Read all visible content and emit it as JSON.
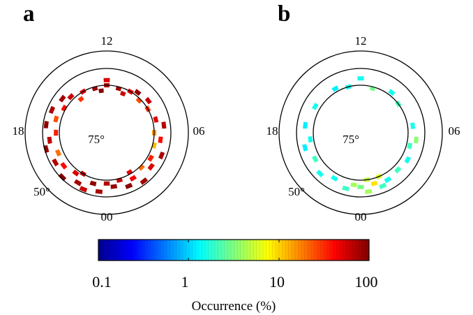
{
  "chart_data": [
    {
      "type": "polar_dial",
      "panel_label": "a",
      "mlt_labels": {
        "top": "12",
        "right": "06",
        "bottom": "00",
        "left": "18"
      },
      "lat_labels": {
        "inner": "75°",
        "outer": "50°"
      },
      "circle_latitudes": [
        50,
        60,
        70
      ],
      "cells": [
        {
          "mlt": 0.0,
          "lat": 68,
          "occ": 70
        },
        {
          "mlt": 0.5,
          "lat": 66,
          "occ": 85
        },
        {
          "mlt": 1.0,
          "lat": 69,
          "occ": 60
        },
        {
          "mlt": 1.5,
          "lat": 64,
          "occ": 90
        },
        {
          "mlt": 2.0,
          "lat": 67,
          "occ": 45
        },
        {
          "mlt": 2.5,
          "lat": 62,
          "occ": 80
        },
        {
          "mlt": 3.0,
          "lat": 69,
          "occ": 20
        },
        {
          "mlt": 3.5,
          "lat": 65,
          "occ": 55
        },
        {
          "mlt": 4.0,
          "lat": 68,
          "occ": 35
        },
        {
          "mlt": 4.5,
          "lat": 63,
          "occ": 75
        },
        {
          "mlt": 5.0,
          "lat": 69,
          "occ": 12
        },
        {
          "mlt": 5.5,
          "lat": 66,
          "occ": 40
        },
        {
          "mlt": 6.0,
          "lat": 70,
          "occ": 15
        },
        {
          "mlt": 6.5,
          "lat": 64,
          "occ": 70
        },
        {
          "mlt": 7.0,
          "lat": 68,
          "occ": 50
        },
        {
          "mlt": 8.0,
          "lat": 70,
          "occ": 30
        },
        {
          "mlt": 8.5,
          "lat": 67,
          "occ": 65
        },
        {
          "mlt": 9.0,
          "lat": 71,
          "occ": 25
        },
        {
          "mlt": 10.0,
          "lat": 70,
          "occ": 45
        },
        {
          "mlt": 10.5,
          "lat": 73,
          "occ": 60
        },
        {
          "mlt": 11.0,
          "lat": 71,
          "occ": 80
        },
        {
          "mlt": 12.0,
          "lat": 70,
          "occ": 70
        },
        {
          "mlt": 12.5,
          "lat": 73,
          "occ": 95
        },
        {
          "mlt": 13.0,
          "lat": 71,
          "occ": 85
        },
        {
          "mlt": 14.0,
          "lat": 70,
          "occ": 50
        },
        {
          "mlt": 14.5,
          "lat": 73,
          "occ": 30
        },
        {
          "mlt": 15.0,
          "lat": 68,
          "occ": 60
        },
        {
          "mlt": 15.5,
          "lat": 65,
          "occ": 80
        },
        {
          "mlt": 16.0,
          "lat": 69,
          "occ": 40
        },
        {
          "mlt": 16.5,
          "lat": 63,
          "occ": 75
        },
        {
          "mlt": 17.0,
          "lat": 67,
          "occ": 25
        },
        {
          "mlt": 17.5,
          "lat": 62,
          "occ": 90
        },
        {
          "mlt": 18.0,
          "lat": 68,
          "occ": 35
        },
        {
          "mlt": 18.5,
          "lat": 64,
          "occ": 65
        },
        {
          "mlt": 19.0,
          "lat": 61,
          "occ": 85
        },
        {
          "mlt": 19.5,
          "lat": 67,
          "occ": 20
        },
        {
          "mlt": 20.0,
          "lat": 63,
          "occ": 70
        },
        {
          "mlt": 20.5,
          "lat": 66,
          "occ": 40
        },
        {
          "mlt": 21.0,
          "lat": 61,
          "occ": 95
        },
        {
          "mlt": 21.5,
          "lat": 68,
          "occ": 55
        },
        {
          "mlt": 22.0,
          "lat": 64,
          "occ": 80
        },
        {
          "mlt": 22.5,
          "lat": 62,
          "occ": 60
        },
        {
          "mlt": 23.0,
          "lat": 67,
          "occ": 90
        },
        {
          "mlt": 23.5,
          "lat": 63,
          "occ": 75
        },
        {
          "mlt": 2.0,
          "lat": 71,
          "occ": 50
        },
        {
          "mlt": 22.0,
          "lat": 70,
          "occ": 70
        },
        {
          "mlt": 12.0,
          "lat": 67,
          "occ": 55
        },
        {
          "mlt": 9.5,
          "lat": 68,
          "occ": 90
        }
      ]
    },
    {
      "type": "polar_dial",
      "panel_label": "b",
      "mlt_labels": {
        "top": "12",
        "right": "06",
        "bottom": "00",
        "left": "18"
      },
      "lat_labels": {
        "inner": "75°",
        "outer": "50°"
      },
      "circle_latitudes": [
        50,
        60,
        70
      ],
      "cells": [
        {
          "mlt": 0.0,
          "lat": 66,
          "occ": 3
        },
        {
          "mlt": 0.5,
          "lat": 63,
          "occ": 4
        },
        {
          "mlt": 1.0,
          "lat": 67,
          "occ": 9
        },
        {
          "mlt": 1.5,
          "lat": 64,
          "occ": 2
        },
        {
          "mlt": 2.0,
          "lat": 66,
          "occ": 1.5
        },
        {
          "mlt": 3.0,
          "lat": 67,
          "occ": 2
        },
        {
          "mlt": 4.0,
          "lat": 66,
          "occ": 1.5
        },
        {
          "mlt": 5.0,
          "lat": 68,
          "occ": 2
        },
        {
          "mlt": 5.5,
          "lat": 65,
          "occ": 3.5
        },
        {
          "mlt": 6.5,
          "lat": 67,
          "occ": 1.5
        },
        {
          "mlt": 8.5,
          "lat": 70,
          "occ": 2
        },
        {
          "mlt": 9.5,
          "lat": 68,
          "occ": 1.5
        },
        {
          "mlt": 11.0,
          "lat": 71,
          "occ": 3
        },
        {
          "mlt": 12.0,
          "lat": 66,
          "occ": 1.5
        },
        {
          "mlt": 13.0,
          "lat": 70,
          "occ": 1.5
        },
        {
          "mlt": 14.0,
          "lat": 68,
          "occ": 1.2
        },
        {
          "mlt": 16.0,
          "lat": 67,
          "occ": 1.5
        },
        {
          "mlt": 17.5,
          "lat": 65,
          "occ": 1.2
        },
        {
          "mlt": 18.5,
          "lat": 68,
          "occ": 1.5
        },
        {
          "mlt": 19.0,
          "lat": 64,
          "occ": 1.2
        },
        {
          "mlt": 20.0,
          "lat": 67,
          "occ": 2
        },
        {
          "mlt": 21.0,
          "lat": 64,
          "occ": 1.5
        },
        {
          "mlt": 22.0,
          "lat": 67,
          "occ": 1.5
        },
        {
          "mlt": 23.0,
          "lat": 64,
          "occ": 2
        },
        {
          "mlt": 23.5,
          "lat": 67,
          "occ": 4
        },
        {
          "mlt": 0.5,
          "lat": 70,
          "occ": 5
        },
        {
          "mlt": 1.5,
          "lat": 70,
          "occ": 6
        }
      ]
    }
  ],
  "colorbar": {
    "scale": "log",
    "range": [
      0.1,
      100
    ],
    "ticks": [
      "0.1",
      "1",
      "10",
      "100"
    ],
    "title": "Occurrence (%)",
    "colormap": "jet"
  }
}
